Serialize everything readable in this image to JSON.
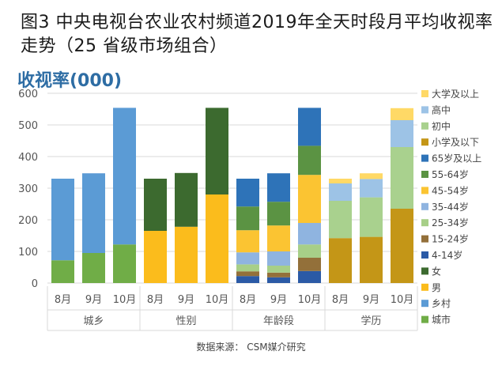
{
  "title": "图3  中央电视台农业农村频道2019年全天时段月平均收视率走势（25 省级市场组合）",
  "chart_data": {
    "type": "bar",
    "stacked": true,
    "unit_label": "收视率(000)",
    "ylim": [
      0,
      600
    ],
    "yticks": [
      0,
      100,
      200,
      300,
      400,
      500,
      600
    ],
    "grid": true,
    "legend_position": "right",
    "groups": [
      {
        "name": "城乡",
        "categories": [
          "8月",
          "9月",
          "10月"
        ],
        "series": [
          {
            "name": "城市",
            "color": "#70ad47",
            "values": [
              72,
              95,
              122
            ]
          },
          {
            "name": "乡村",
            "color": "#5b9bd5",
            "values": [
              258,
              252,
              432
            ]
          }
        ]
      },
      {
        "name": "性别",
        "categories": [
          "8月",
          "9月",
          "10月"
        ],
        "series": [
          {
            "name": "男",
            "color": "#fbbc1c",
            "values": [
              165,
              178,
              280
            ]
          },
          {
            "name": "女",
            "color": "#3c6a2f",
            "values": [
              165,
              170,
              274
            ]
          }
        ]
      },
      {
        "name": "年龄段",
        "categories": [
          "8月",
          "9月",
          "10月"
        ],
        "series": [
          {
            "name": "4-14岁",
            "color": "#2b5aa6",
            "values": [
              22,
              18,
              38
            ]
          },
          {
            "name": "15-24岁",
            "color": "#93703a",
            "values": [
              15,
              15,
              42
            ]
          },
          {
            "name": "25-34岁",
            "color": "#a7cf88",
            "values": [
              22,
              22,
              42
            ]
          },
          {
            "name": "35-44岁",
            "color": "#8fb4e0",
            "values": [
              38,
              45,
              68
            ]
          },
          {
            "name": "45-54岁",
            "color": "#fbc432",
            "values": [
              70,
              82,
              152
            ]
          },
          {
            "name": "55-64岁",
            "color": "#5b9343",
            "values": [
              75,
              75,
              92
            ]
          },
          {
            "name": "65岁及以上",
            "color": "#2e73b8",
            "values": [
              88,
              90,
              120
            ]
          }
        ]
      },
      {
        "name": "学历",
        "categories": [
          "8月",
          "9月",
          "10月"
        ],
        "series": [
          {
            "name": "小学及以下",
            "color": "#c49617",
            "values": [
              142,
              146,
              235
            ]
          },
          {
            "name": "初中",
            "color": "#a9d18e",
            "values": [
              118,
              125,
              195
            ]
          },
          {
            "name": "高中",
            "color": "#9dc3e6",
            "values": [
              55,
              58,
              85
            ]
          },
          {
            "name": "大学及以上",
            "color": "#ffd966",
            "values": [
              15,
              18,
              38
            ]
          }
        ]
      }
    ],
    "legend": [
      {
        "name": "大学及以上",
        "color": "#ffd966"
      },
      {
        "name": "高中",
        "color": "#9dc3e6"
      },
      {
        "name": "初中",
        "color": "#a9d18e"
      },
      {
        "name": "小学及以下",
        "color": "#c49617"
      },
      {
        "name": "65岁及以上",
        "color": "#2e73b8"
      },
      {
        "name": "55-64岁",
        "color": "#5b9343"
      },
      {
        "name": "45-54岁",
        "color": "#fbc432"
      },
      {
        "name": "35-44岁",
        "color": "#8fb4e0"
      },
      {
        "name": "25-34岁",
        "color": "#a7cf88"
      },
      {
        "name": "15-24岁",
        "color": "#93703a"
      },
      {
        "name": "4-14岁",
        "color": "#2b5aa6"
      },
      {
        "name": "女",
        "color": "#3c6a2f"
      },
      {
        "name": "男",
        "color": "#fbbc1c"
      },
      {
        "name": "乡村",
        "color": "#5b9bd5"
      },
      {
        "name": "城市",
        "color": "#70ad47"
      }
    ]
  },
  "source": "数据来源：  CSM媒介研究"
}
